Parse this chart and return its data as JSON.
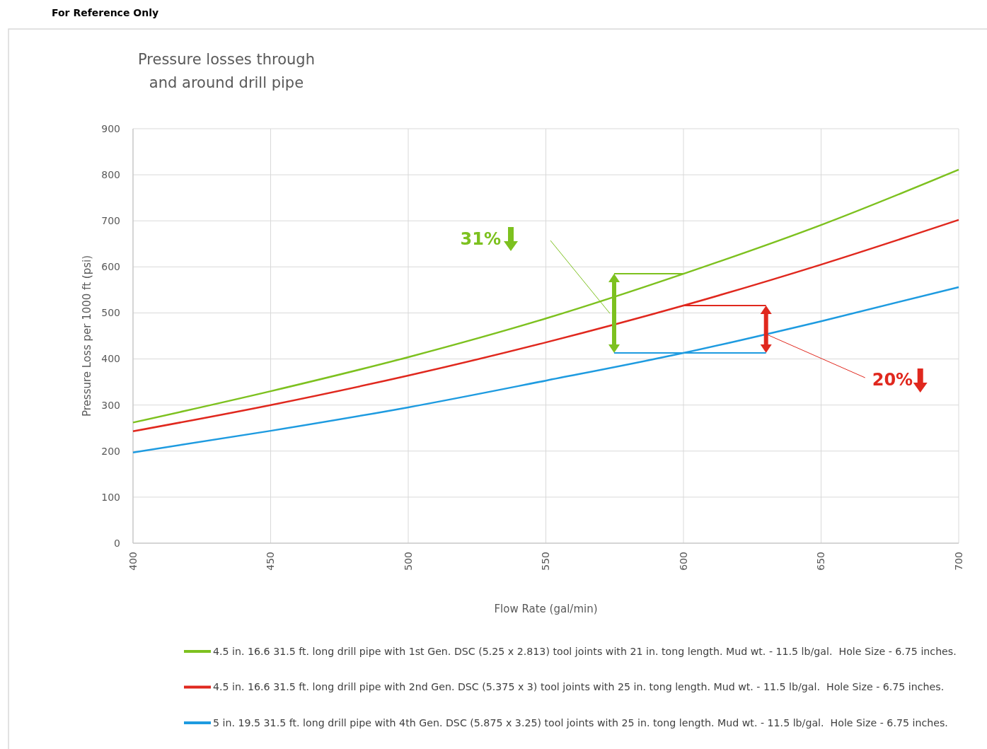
{
  "chart_data": {
    "type": "line",
    "title": "Pressure losses through\nand around drill pipe",
    "xlabel": "Flow Rate (gal/min)",
    "ylabel": "Pressure Loss per 1000 ft (psi)",
    "x": [
      400,
      450,
      500,
      550,
      600,
      650,
      700
    ],
    "series": [
      {
        "name": "4.5 in. 16.6 31.5 ft. long drill pipe with 1st Gen. DSC (5.25 x 2.813) tool joints with 21 in. tong length. Mud wt. - 11.5 lb/gal.  Hole Size - 6.75 inches.",
        "color": "#7dc11f",
        "values": [
          262,
          330,
          404,
          488,
          585,
          691,
          811
        ]
      },
      {
        "name": "4.5 in. 16.6 31.5 ft. long drill pipe with 2nd Gen. DSC (5.375 x 3) tool joints with 25 in. tong length. Mud wt. - 11.5 lb/gal.  Hole Size - 6.75 inches.",
        "color": "#e0281e",
        "values": [
          243,
          300,
          364,
          436,
          516,
          605,
          702
        ]
      },
      {
        "name": "5 in. 19.5 31.5 ft. long drill pipe with 4th Gen. DSC (5.875 x 3.25) tool joints with 25 in. tong length. Mud wt. - 11.5 lb/gal.  Hole Size - 6.75 inches.",
        "color": "#1e9be0",
        "values": [
          197,
          244,
          295,
          353,
          413,
          482,
          556
        ]
      }
    ],
    "xlim": [
      400,
      700
    ],
    "xticks": [
      400,
      450,
      500,
      550,
      600,
      650,
      700
    ],
    "ylim": [
      0,
      900
    ],
    "yticks": [
      0,
      100,
      200,
      300,
      400,
      500,
      600,
      700,
      800,
      900
    ],
    "grid": true,
    "legend": "bottom",
    "marker": "none",
    "line_style": "solid",
    "annotations": [
      "For Reference Only",
      "31%",
      {
        "text": "20%",
        "x": 630,
        "y": 454
      }
    ]
  }
}
